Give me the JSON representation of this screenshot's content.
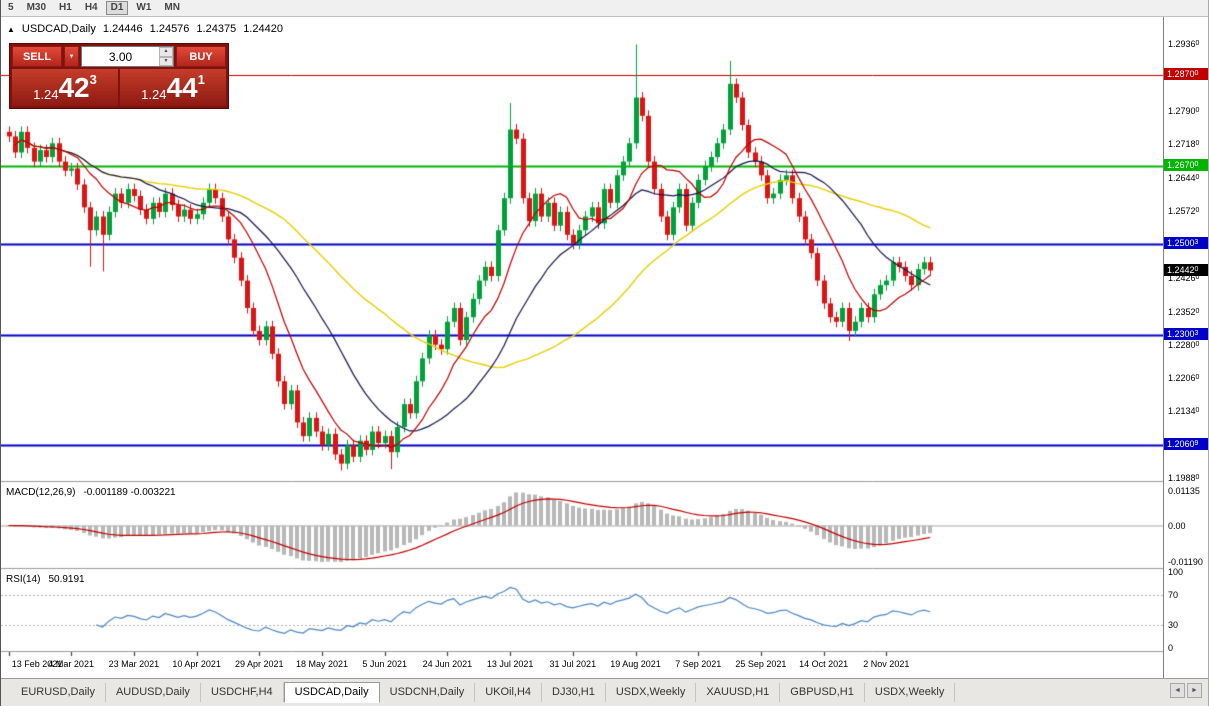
{
  "toolbar": {
    "timeframes": [
      "5",
      "M30",
      "H1",
      "H4",
      "D1",
      "W1",
      "MN"
    ],
    "active": "D1"
  },
  "header": {
    "triangle_icon": "▲",
    "symbol": "USDCAD,Daily",
    "open": "1.24446",
    "high": "1.24576",
    "low": "1.24375",
    "close": "1.24420"
  },
  "trade_panel": {
    "sell_label": "SELL",
    "buy_label": "BUY",
    "volume": "3.00",
    "dropdown_icon": "▼",
    "spinner_up": "▲",
    "spinner_down": "▼",
    "bid": {
      "small": "1.24",
      "big": "42",
      "sup": "3"
    },
    "ask": {
      "small": "1.24",
      "big": "44",
      "sup": "1"
    }
  },
  "price_axis": {
    "ticks": [
      {
        "v": 1.2936,
        "label": "1.29360"
      },
      {
        "v": 1.279,
        "label": "1.27900"
      },
      {
        "v": 1.2718,
        "label": "1.27180"
      },
      {
        "v": 1.2644,
        "label": "1.26440"
      },
      {
        "v": 1.2572,
        "label": "1.25720"
      },
      {
        "v": 1.2426,
        "label": "1.24260"
      },
      {
        "v": 1.2352,
        "label": "1.23520"
      },
      {
        "v": 1.228,
        "label": "1.22800"
      },
      {
        "v": 1.2206,
        "label": "1.22060"
      },
      {
        "v": 1.2134,
        "label": "1.21340"
      },
      {
        "v": 1.1988,
        "label": "1.19880"
      }
    ]
  },
  "macd": {
    "label": "MACD(12,26,9)",
    "values": "-0.001189 -0.003221",
    "ticks": [
      {
        "v": 0.01135,
        "label": "0.01135"
      },
      {
        "v": 0,
        "label": "0.00"
      },
      {
        "v": -0.0119,
        "label": "-0.01190"
      }
    ]
  },
  "rsi": {
    "label": "RSI(14)",
    "value": "50.9191",
    "ticks": [
      {
        "v": 100,
        "label": "100"
      },
      {
        "v": 70,
        "label": "70"
      },
      {
        "v": 30,
        "label": "30"
      },
      {
        "v": 0,
        "label": "0"
      }
    ],
    "levels": [
      70,
      30
    ]
  },
  "tabs": {
    "items": [
      "EURUSD,Daily",
      "AUDUSD,Daily",
      "USDCHF,H4",
      "USDCAD,Daily",
      "USDCNH,Daily",
      "UKOil,H4",
      "DJ30,H1",
      "USDX,Weekly",
      "XAUUSD,H1",
      "GBPUSD,H1",
      "USDX,Weekly"
    ],
    "active_index": 3,
    "left_arrow": "◄",
    "right_arrow": "►"
  },
  "chart_data": {
    "type": "candlestick",
    "title": "USDCAD,Daily",
    "ylim": [
      1.1982,
      1.2996
    ],
    "x_labels": [
      "13 Feb 2021",
      "4 Mar 2021",
      "23 Mar 2021",
      "10 Apr 2021",
      "29 Apr 2021",
      "18 May 2021",
      "5 Jun 2021",
      "24 Jun 2021",
      "13 Jul 2021",
      "31 Jul 2021",
      "19 Aug 2021",
      "7 Sep 2021",
      "25 Sep 2021",
      "14 Oct 2021",
      "2 Nov 2021"
    ],
    "x_label_step": 10,
    "closes": [
      1.2735,
      1.27,
      1.2745,
      1.271,
      1.268,
      1.2705,
      1.269,
      1.272,
      1.268,
      1.266,
      1.2665,
      1.263,
      1.258,
      1.253,
      1.256,
      1.252,
      1.257,
      1.261,
      1.259,
      1.262,
      1.2605,
      1.2575,
      1.2555,
      1.259,
      1.257,
      1.261,
      1.2585,
      1.256,
      1.2575,
      1.2555,
      1.2565,
      1.259,
      1.262,
      1.26,
      1.256,
      1.251,
      1.247,
      1.242,
      1.236,
      1.231,
      1.229,
      1.232,
      1.226,
      1.22,
      1.215,
      1.218,
      1.211,
      1.208,
      1.212,
      1.209,
      1.206,
      1.2085,
      1.204,
      1.202,
      1.206,
      1.2035,
      1.207,
      1.205,
      1.209,
      1.2065,
      1.208,
      1.2045,
      1.21,
      1.215,
      1.213,
      1.22,
      1.225,
      1.23,
      1.228,
      1.227,
      1.233,
      1.236,
      1.229,
      1.234,
      1.238,
      1.242,
      1.245,
      1.243,
      1.253,
      1.26,
      1.275,
      1.273,
      1.26,
      1.255,
      1.261,
      1.256,
      1.259,
      1.254,
      1.257,
      1.252,
      1.25,
      1.253,
      1.256,
      1.258,
      1.2545,
      1.262,
      1.259,
      1.265,
      1.268,
      1.272,
      1.282,
      1.278,
      1.268,
      1.262,
      1.256,
      1.252,
      1.258,
      1.262,
      1.254,
      1.259,
      1.264,
      1.267,
      1.269,
      1.272,
      1.275,
      1.285,
      1.282,
      1.276,
      1.27,
      1.268,
      1.265,
      1.26,
      1.261,
      1.264,
      1.265,
      1.26,
      1.256,
      1.251,
      1.248,
      1.242,
      1.237,
      1.234,
      1.233,
      1.236,
      1.231,
      1.233,
      1.236,
      1.234,
      1.239,
      1.241,
      1.242,
      1.246,
      1.245,
      1.243,
      1.241,
      1.2445,
      1.246,
      1.2442
    ],
    "spikes": [
      {
        "i": 13,
        "low": 1.245
      },
      {
        "i": 15,
        "low": 1.244
      },
      {
        "i": 53,
        "low": 1.2005
      },
      {
        "i": 61,
        "low": 1.2008
      },
      {
        "i": 80,
        "high": 1.2808
      },
      {
        "i": 100,
        "high": 1.2936
      },
      {
        "i": 115,
        "high": 1.29
      },
      {
        "i": 134,
        "low": 1.2288
      }
    ],
    "levels": [
      {
        "price": 1.287,
        "label": "1.28700",
        "color": "#c00000",
        "width": 1
      },
      {
        "price": 1.267,
        "label": "1.26700",
        "color": "#00b400",
        "width": 2
      },
      {
        "price": 1.25003,
        "label": "1.25003",
        "color": "#0000c8",
        "width": 2
      },
      {
        "price": 1.23003,
        "label": "1.23003",
        "color": "#0000c8",
        "width": 2
      },
      {
        "price": 1.20609,
        "label": "1.20609",
        "color": "#0000c8",
        "width": 2
      }
    ],
    "current_price": {
      "price": 1.2442,
      "label": "1.24420",
      "color": "#000000"
    },
    "ma_periods": [
      10,
      22,
      45
    ],
    "colors": {
      "up": "#00a13a",
      "down": "#dc1414",
      "ma_fast": "#c00000",
      "ma_mid": "#15154f",
      "ma_slow": "#e6d000",
      "macd_hist": "#b8b8b8",
      "macd_signal": "#c00000",
      "rsi_line": "#4a86c8"
    }
  }
}
